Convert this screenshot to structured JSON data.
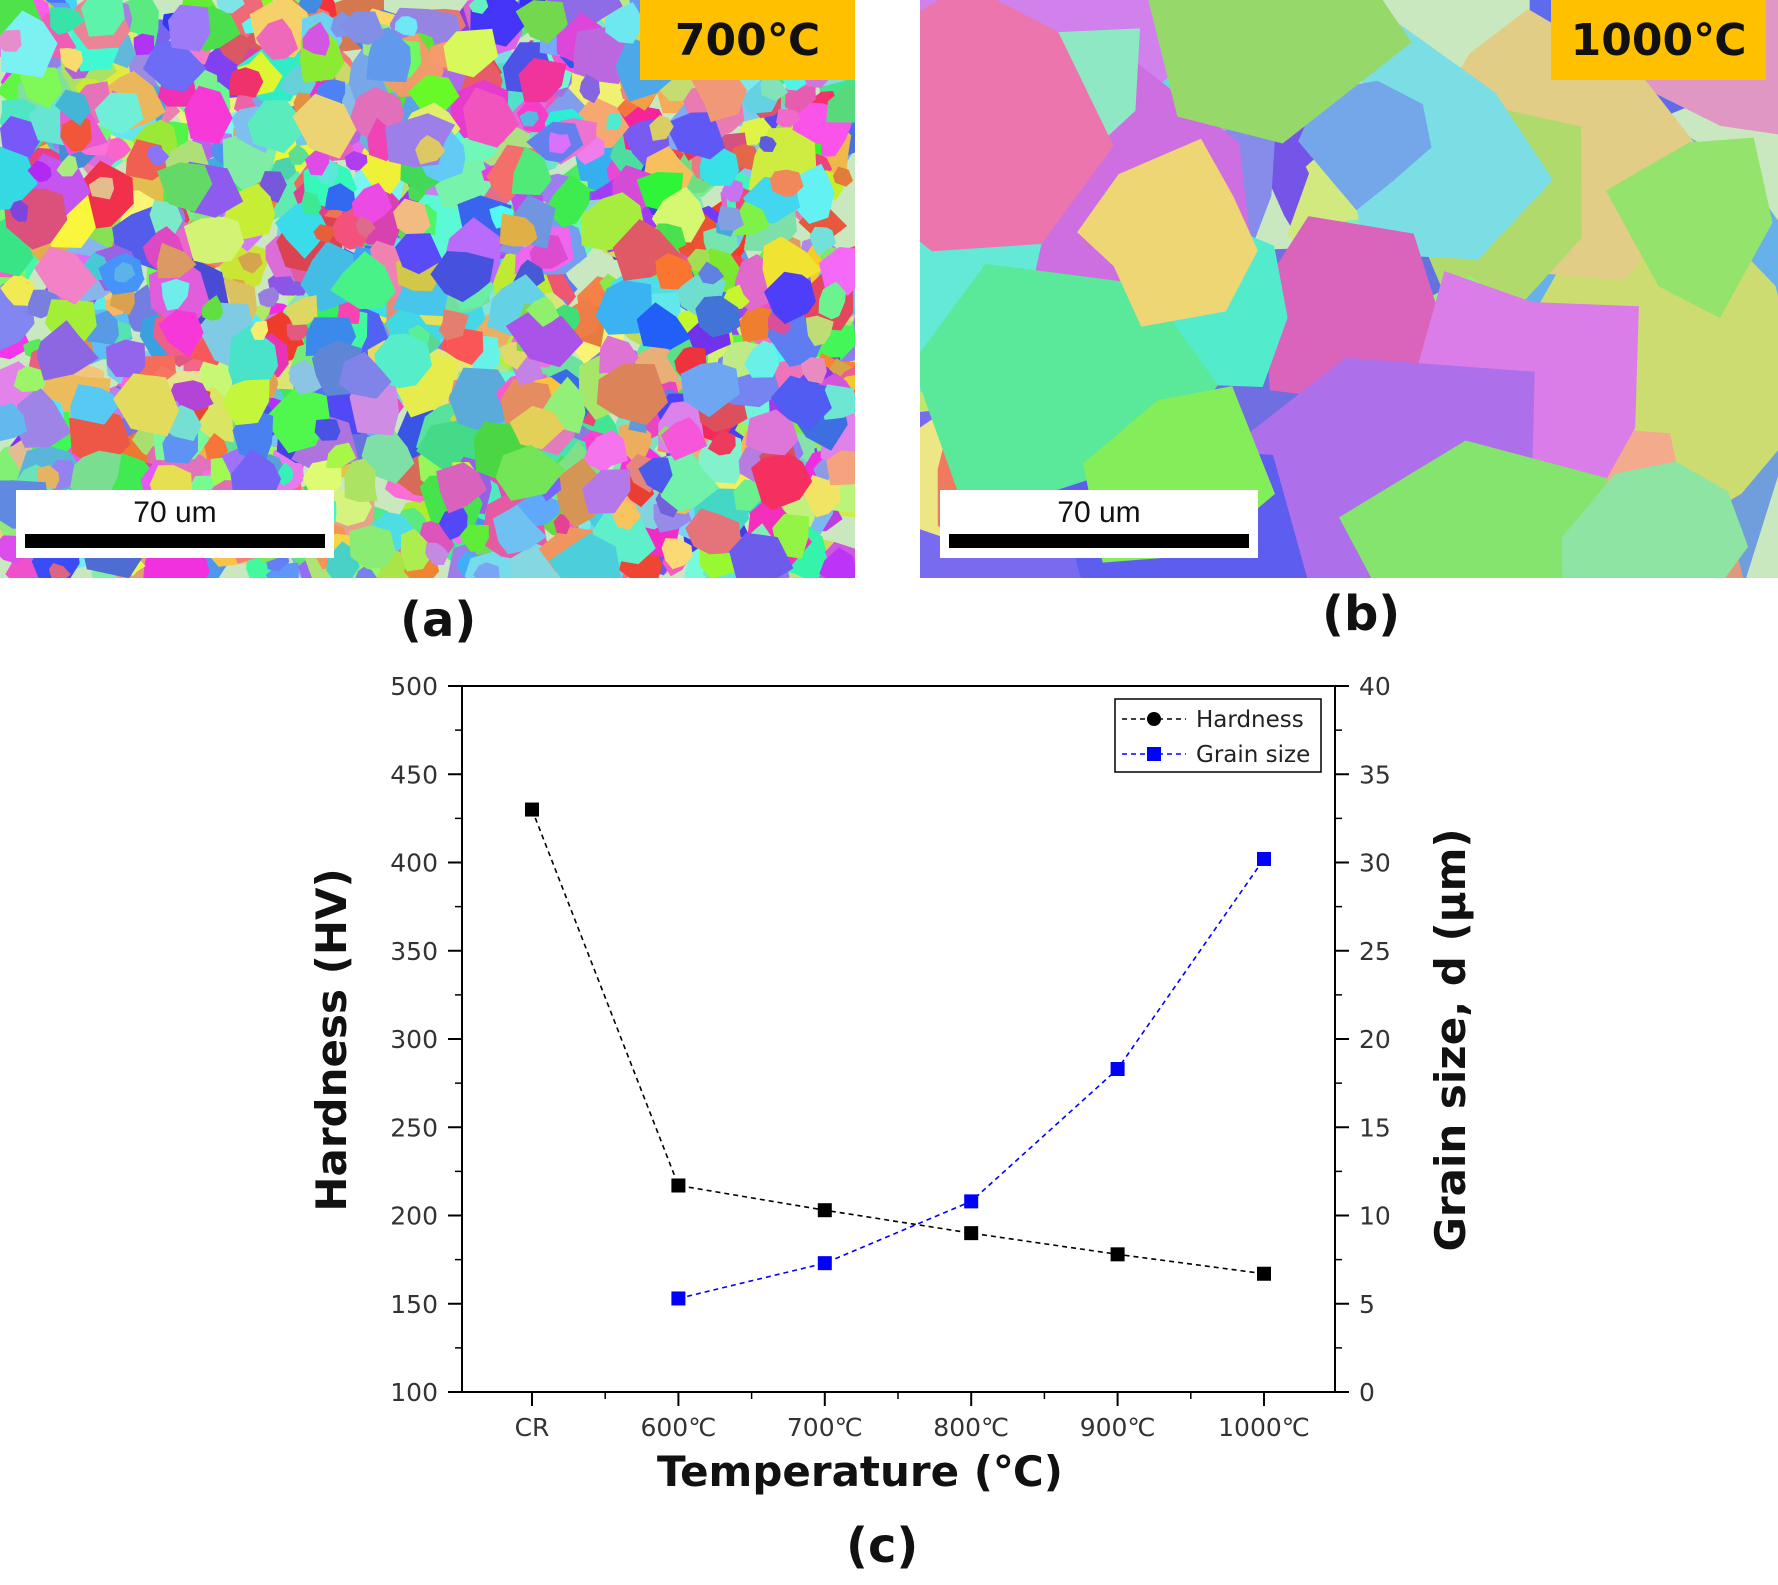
{
  "panels": {
    "a": {
      "label": "(a)",
      "temperature": "700℃",
      "scalebar": "70 um"
    },
    "b": {
      "label": "(b)",
      "temperature": "1000℃",
      "scalebar": "70 um"
    },
    "c": {
      "label": "(c)"
    }
  },
  "colors": {
    "label_bg": "#ffc000",
    "hardness": "#000000",
    "grain_size": "#0000ff"
  },
  "chart_data": {
    "type": "line",
    "categories": [
      "CR",
      "600℃",
      "700℃",
      "800℃",
      "900℃",
      "1000℃"
    ],
    "xlabel": "Temperature (℃)",
    "ylabel": "Hardness (HV)",
    "y2label": "Grain size, d (μm)",
    "ylim": [
      100,
      500
    ],
    "yticks": [
      100,
      150,
      200,
      250,
      300,
      350,
      400,
      450,
      500
    ],
    "y2lim": [
      0,
      40
    ],
    "y2ticks": [
      0,
      5,
      10,
      15,
      20,
      25,
      30,
      35,
      40
    ],
    "legend_position": "top-right",
    "grid": false,
    "series": [
      {
        "name": "Hardness",
        "axis": "left",
        "color": "#000000",
        "values": [
          430,
          217,
          203,
          190,
          178,
          167
        ]
      },
      {
        "name": "Grain size",
        "axis": "right",
        "color": "#0000ff",
        "values": [
          null,
          5.3,
          7.3,
          10.8,
          18.3,
          30.2
        ]
      }
    ]
  }
}
